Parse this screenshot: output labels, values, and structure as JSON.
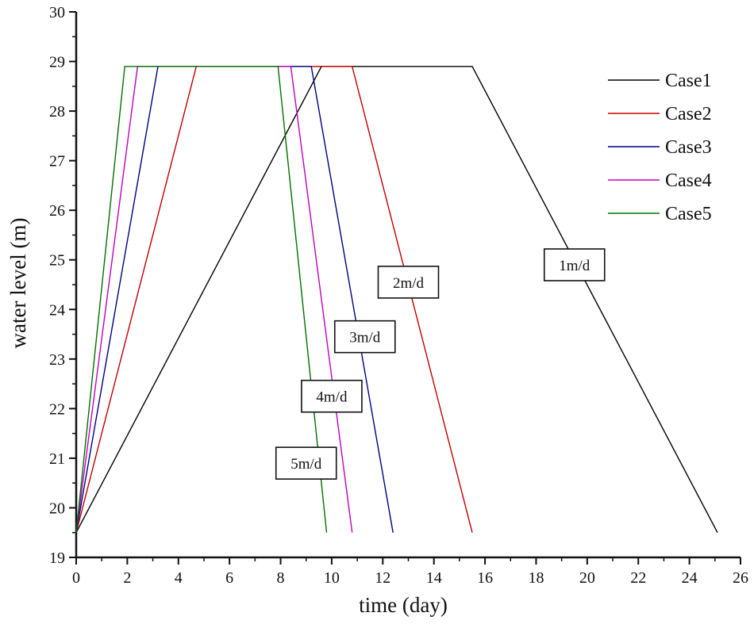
{
  "chart_data": {
    "type": "line",
    "title": "",
    "xlabel": "time (day)",
    "ylabel": "water level (m)",
    "xlim": [
      0,
      26
    ],
    "ylim": [
      19,
      30
    ],
    "xticks": [
      0,
      2,
      4,
      6,
      8,
      10,
      12,
      14,
      16,
      18,
      20,
      22,
      24,
      26
    ],
    "yticks": [
      19,
      20,
      21,
      22,
      23,
      24,
      25,
      26,
      27,
      28,
      29,
      30
    ],
    "grid": false,
    "legend_position": "top-right",
    "series": [
      {
        "name": "Case1",
        "color": "#000000",
        "x": [
          0,
          9.6,
          15.5,
          25.1
        ],
        "y": [
          19.5,
          28.9,
          28.9,
          19.5
        ]
      },
      {
        "name": "Case2",
        "color": "#c00000",
        "x": [
          0,
          4.7,
          10.8,
          15.5
        ],
        "y": [
          19.5,
          28.9,
          28.9,
          19.5
        ]
      },
      {
        "name": "Case3",
        "color": "#000080",
        "x": [
          0,
          3.2,
          9.2,
          12.4
        ],
        "y": [
          19.5,
          28.9,
          28.9,
          19.5
        ]
      },
      {
        "name": "Case4",
        "color": "#c000c0",
        "x": [
          0,
          2.4,
          8.4,
          10.8
        ],
        "y": [
          19.5,
          28.9,
          28.9,
          19.5
        ]
      },
      {
        "name": "Case5",
        "color": "#007000",
        "x": [
          0,
          1.9,
          7.9,
          9.8
        ],
        "y": [
          19.5,
          28.9,
          28.9,
          19.5
        ]
      }
    ],
    "annotations": [
      {
        "text": "1m/d",
        "x": 19.5,
        "y": 24.9
      },
      {
        "text": "2m/d",
        "x": 13.0,
        "y": 24.55
      },
      {
        "text": "3m/d",
        "x": 11.3,
        "y": 23.45
      },
      {
        "text": "4m/d",
        "x": 10.0,
        "y": 22.25
      },
      {
        "text": "5m/d",
        "x": 9.0,
        "y": 20.9
      }
    ]
  }
}
